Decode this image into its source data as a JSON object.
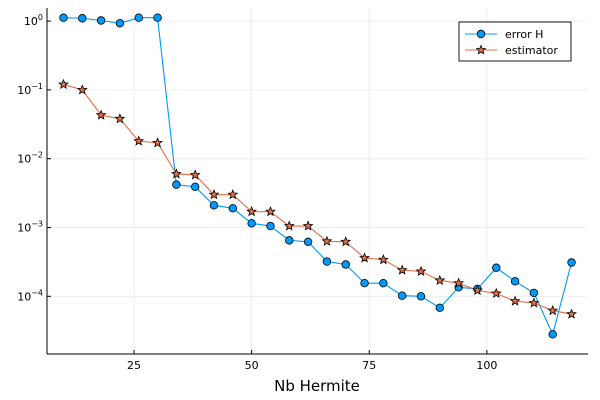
{
  "chart_data": {
    "type": "line",
    "title": "",
    "xlabel": "Nb Hermite",
    "ylabel": "",
    "yscale": "log",
    "xlim": [
      6.5,
      121.5
    ],
    "ylim": [
      1.45e-05,
      1.55
    ],
    "xticks": [
      25,
      50,
      75,
      100
    ],
    "xtick_labels": [
      "25",
      "50",
      "75",
      "100"
    ],
    "yticks": [
      1,
      0.1,
      0.01,
      0.001,
      0.0001
    ],
    "ytick_labels": [
      {
        "base": "10",
        "exp": "0"
      },
      {
        "base": "10",
        "exp": "−1"
      },
      {
        "base": "10",
        "exp": "−2"
      },
      {
        "base": "10",
        "exp": "−3"
      },
      {
        "base": "10",
        "exp": "−4"
      }
    ],
    "grid": true,
    "legend_position": "top-right",
    "x": [
      10,
      14,
      18,
      22,
      26,
      30,
      34,
      38,
      42,
      46,
      50,
      54,
      58,
      62,
      66,
      70,
      74,
      78,
      82,
      86,
      90,
      94,
      98,
      102,
      106,
      110,
      114,
      118
    ],
    "series": [
      {
        "name": "error H",
        "color": "#009AFA",
        "marker": "circle",
        "values": [
          1.12,
          1.1,
          1.02,
          0.93,
          1.12,
          1.12,
          0.0042,
          0.0039,
          0.0021,
          0.0019,
          0.00115,
          0.00105,
          0.00065,
          0.00062,
          0.00032,
          0.00029,
          0.000155,
          0.000155,
          0.000102,
          0.0001,
          6.8e-05,
          0.000135,
          0.000128,
          0.00026,
          0.000165,
          0.000112,
          2.8e-05,
          0.00031
        ]
      },
      {
        "name": "estimator",
        "color": "#E26F46",
        "marker": "star",
        "values": [
          0.12,
          0.1,
          0.043,
          0.038,
          0.018,
          0.017,
          0.006,
          0.0058,
          0.003,
          0.003,
          0.0017,
          0.0017,
          0.00105,
          0.00105,
          0.00063,
          0.00062,
          0.00036,
          0.00034,
          0.00024,
          0.00023,
          0.00017,
          0.000155,
          0.000122,
          0.00011,
          8.5e-05,
          8e-05,
          6.2e-05,
          5.5e-05
        ]
      }
    ]
  }
}
